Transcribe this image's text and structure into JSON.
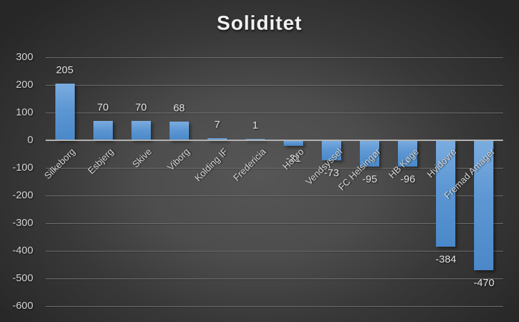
{
  "chart_data": {
    "type": "bar",
    "title": "Soliditet",
    "categories": [
      "Silkeborg",
      "Esbjerg",
      "Skive",
      "Viborg",
      "Kolding IF",
      "Fredericia",
      "Hobro",
      "Vendsyssel",
      "FC Helsingør",
      "HB Køge",
      "Hvidovre",
      "Fremad Amager"
    ],
    "values": [
      205,
      70,
      70,
      68,
      7,
      1,
      -21,
      -73,
      -95,
      -96,
      -384,
      -470
    ],
    "data_labels": [
      "205",
      "70",
      "70",
      "68",
      "7",
      "1",
      "-21",
      "-73",
      "-95",
      "-96",
      "-384",
      "-470"
    ],
    "xlabel": "",
    "ylabel": "",
    "ylim": [
      -600,
      300
    ],
    "ytick_step": 100,
    "ytick_labels": [
      "300",
      "200",
      "100",
      "0",
      "-100",
      "-200",
      "-300",
      "-400",
      "-500",
      "-600"
    ],
    "grid": true,
    "legend": false,
    "colors": {
      "bar_top": "#7bacdf",
      "bar_bottom": "#4a88c9",
      "gridline": "#6f6f6f",
      "zero_line": "#b5b5b5",
      "tick_text": "#d4d4d4",
      "data_label_text": "#e2e2e2",
      "title_text": "#f0f0f0",
      "background_center": "#4d4d4d",
      "background_edge": "#272727"
    }
  }
}
